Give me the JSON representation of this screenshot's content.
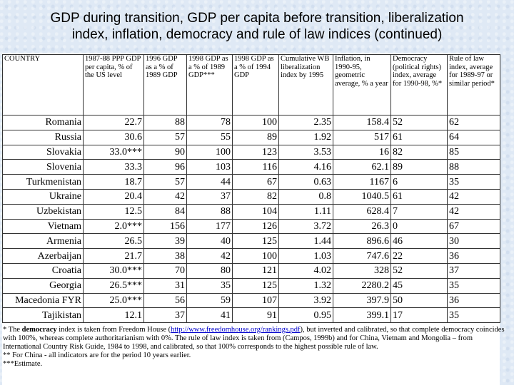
{
  "title": {
    "line1": "GDP during transition, GDP per capita before transition, liberalization",
    "line2": "index, inflation, democracy and rule of law indices (continued)"
  },
  "table": {
    "headers": [
      "COUNTRY",
      "1987-88 PPP GDP per capita, % of the US level",
      "1996 GDP as a % of 1989 GDP",
      "1998 GDP as a % of 1989 GDP***",
      "1998 GDP as a % of 1994 GDP",
      "Cumulative WB liberalization index by 1995",
      "Inflation, in 1990-95, geometric average, % a year",
      "Democracy (political rights) index, average for 1990-98, %*",
      "Rule of law index, average for 1989-97 or similar period*"
    ],
    "rows": [
      {
        "country": "Romania",
        "ppp": "22.7",
        "gdp96": "88",
        "gdp98": "78",
        "gdp9894": "100",
        "lib": "2.35",
        "infl": "158.4",
        "dem": "52",
        "rol": "62"
      },
      {
        "country": "Russia",
        "ppp": "30.6",
        "gdp96": "57",
        "gdp98": "55",
        "gdp9894": "89",
        "lib": "1.92",
        "infl": "517",
        "dem": "61",
        "rol": "64"
      },
      {
        "country": "Slovakia",
        "ppp": "33.0***",
        "gdp96": "90",
        "gdp98": "100",
        "gdp9894": "123",
        "lib": "3.53",
        "infl": "16",
        "dem": "82",
        "rol": "85"
      },
      {
        "country": "Slovenia",
        "ppp": "33.3",
        "gdp96": "96",
        "gdp98": "103",
        "gdp9894": "116",
        "lib": "4.16",
        "infl": "62.1",
        "dem": "89",
        "rol": "88"
      },
      {
        "country": "Turkmenistan",
        "ppp": "18.7",
        "gdp96": "57",
        "gdp98": "44",
        "gdp9894": "67",
        "lib": "0.63",
        "infl": "1167",
        "dem": "6",
        "rol": "35"
      },
      {
        "country": "Ukraine",
        "ppp": "20.4",
        "gdp96": "42",
        "gdp98": "37",
        "gdp9894": "82",
        "lib": "0.8",
        "infl": "1040.5",
        "dem": "61",
        "rol": "42"
      },
      {
        "country": "Uzbekistan",
        "ppp": "12.5",
        "gdp96": "84",
        "gdp98": "88",
        "gdp9894": "104",
        "lib": "1.11",
        "infl": "628.4",
        "dem": "7",
        "rol": "42"
      },
      {
        "country": "Vietnam",
        "ppp": "2.0***",
        "gdp96": "156",
        "gdp98": "177",
        "gdp9894": "126",
        "lib": "3.72",
        "infl": "26.3",
        "dem": "0",
        "rol": "67"
      },
      {
        "country": "Armenia",
        "ppp": "26.5",
        "gdp96": "39",
        "gdp98": "40",
        "gdp9894": "125",
        "lib": "1.44",
        "infl": "896.6",
        "dem": "46",
        "rol": "30"
      },
      {
        "country": "Azerbaijan",
        "ppp": "21.7",
        "gdp96": "38",
        "gdp98": "42",
        "gdp9894": "100",
        "lib": "1.03",
        "infl": "747.6",
        "dem": "22",
        "rol": "36"
      },
      {
        "country": "Croatia",
        "ppp": "30.0***",
        "gdp96": "70",
        "gdp98": "80",
        "gdp9894": "121",
        "lib": "4.02",
        "infl": "328",
        "dem": "52",
        "rol": "37"
      },
      {
        "country": "Georgia",
        "ppp": "26.5***",
        "gdp96": "31",
        "gdp98": "35",
        "gdp9894": "125",
        "lib": "1.32",
        "infl": "2280.2",
        "dem": "45",
        "rol": "35"
      },
      {
        "country": "Macedonia FYR",
        "ppp": "25.0***",
        "gdp96": "56",
        "gdp98": "59",
        "gdp9894": "107",
        "lib": "3.92",
        "infl": "397.9",
        "dem": "50",
        "rol": "36"
      },
      {
        "country": "Tajikistan",
        "ppp": "12.1",
        "gdp96": "37",
        "gdp98": "41",
        "gdp9894": "91",
        "lib": "0.95",
        "infl": "399.1",
        "dem": "17",
        "rol": "35"
      }
    ]
  },
  "notes": {
    "n1_prefix": "* The ",
    "n1_bold": "democracy",
    "n1_mid": " index is taken from Freedom House (",
    "n1_link": "http://www.freedomhouse.org/rankings.pdf",
    "n1_rest": "), but inverted and calibrated, so that complete democracy coincides with 100%, whereas complete authoritarianism with 0%. The rule of law index is taken from (Campos, 1999b) and for China, Vietnam and Mongolia – from International Country Risk Guide, 1984 to 1998, and calibrated, so that 100% corresponds to the highest possible rule of law.",
    "n2": "** For China - all indicators are for the period 10 years earlier.",
    "n3": "***Estimate."
  }
}
